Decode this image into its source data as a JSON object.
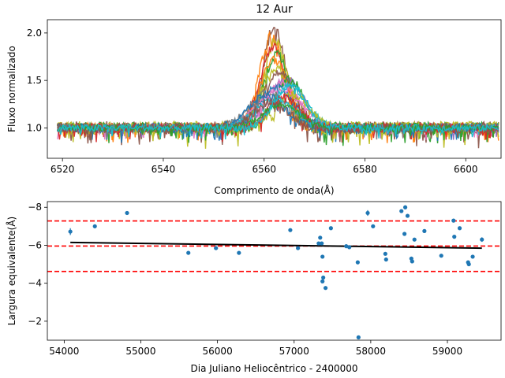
{
  "chart_data": [
    {
      "type": "line",
      "title": "12 Aur",
      "xlabel": "Comprimento de onda(Å)",
      "ylabel": "Fluxo normalizado",
      "xlim": [
        6517,
        6607
      ],
      "ylim": [
        0.68,
        2.14
      ],
      "xticks": [
        6520,
        6540,
        6560,
        6580,
        6600
      ],
      "yticks": [
        1.0,
        1.5,
        2.0
      ],
      "x_range": [
        6519,
        6606.5
      ],
      "n_series": 22,
      "emission_center": 6562,
      "colors": [
        "#1f77b4",
        "#ff7f0e",
        "#2ca02c",
        "#d62728",
        "#9467bd",
        "#8c564b",
        "#e377c2",
        "#7f7f7f",
        "#bcbd22",
        "#17becf"
      ],
      "series": [
        {
          "peak": 2.06,
          "sigma": 2.2,
          "center": 6562.0,
          "noise": 0.07,
          "color": "#8c564b"
        },
        {
          "peak": 1.98,
          "sigma": 2.4,
          "center": 6561.5,
          "noise": 0.05,
          "color": "#ff7f0e"
        },
        {
          "peak": 1.92,
          "sigma": 2.3,
          "center": 6562.2,
          "noise": 0.06,
          "color": "#bcbd22"
        },
        {
          "peak": 1.85,
          "sigma": 2.6,
          "center": 6561.8,
          "noise": 0.05,
          "color": "#d62728"
        },
        {
          "peak": 1.78,
          "sigma": 2.5,
          "center": 6562.5,
          "noise": 0.06,
          "color": "#2ca02c"
        },
        {
          "peak": 1.72,
          "sigma": 2.8,
          "center": 6562.0,
          "noise": 0.05,
          "color": "#ff7f0e"
        },
        {
          "peak": 1.65,
          "sigma": 3.0,
          "center": 6562.8,
          "noise": 0.07,
          "color": "#bcbd22"
        },
        {
          "peak": 1.58,
          "sigma": 3.2,
          "center": 6563.0,
          "noise": 0.05,
          "color": "#8c564b"
        },
        {
          "peak": 1.52,
          "sigma": 3.4,
          "center": 6564.5,
          "noise": 0.04,
          "color": "#9467bd"
        },
        {
          "peak": 1.5,
          "sigma": 3.0,
          "center": 6565.0,
          "noise": 0.05,
          "color": "#2ca02c"
        },
        {
          "peak": 1.47,
          "sigma": 3.6,
          "center": 6563.5,
          "noise": 0.04,
          "color": "#e377c2"
        },
        {
          "peak": 1.45,
          "sigma": 3.2,
          "center": 6565.2,
          "noise": 0.04,
          "color": "#17becf"
        },
        {
          "peak": 1.42,
          "sigma": 3.5,
          "center": 6562.5,
          "noise": 0.05,
          "color": "#1f77b4"
        },
        {
          "peak": 1.4,
          "sigma": 4.5,
          "center": 6563.0,
          "noise": 0.02,
          "color": "#e377c2"
        },
        {
          "peak": 1.38,
          "sigma": 3.8,
          "center": 6561.0,
          "noise": 0.04,
          "color": "#7f7f7f"
        },
        {
          "peak": 1.36,
          "sigma": 3.3,
          "center": 6565.5,
          "noise": 0.04,
          "color": "#bcbd22"
        },
        {
          "peak": 1.34,
          "sigma": 3.6,
          "center": 6560.5,
          "noise": 0.04,
          "color": "#1f77b4"
        },
        {
          "peak": 1.32,
          "sigma": 3.0,
          "center": 6564.0,
          "noise": 0.05,
          "color": "#d62728"
        },
        {
          "peak": 1.3,
          "sigma": 3.9,
          "center": 6562.0,
          "noise": 0.03,
          "color": "#17becf"
        },
        {
          "peak": 1.28,
          "sigma": 3.4,
          "center": 6561.5,
          "noise": 0.05,
          "color": "#8c564b"
        },
        {
          "peak": 1.25,
          "sigma": 3.7,
          "center": 6563.5,
          "noise": 0.03,
          "color": "#2ca02c"
        },
        {
          "peak": 1.45,
          "sigma": 3.0,
          "center": 6565.0,
          "noise": 0.035,
          "color": "#17becf"
        }
      ]
    },
    {
      "type": "scatter",
      "xlabel": "Dia Juliano Heliocêntrico - 2400000",
      "ylabel": "Largura equivalente(Å)",
      "xlim": [
        53780,
        59700
      ],
      "ylim": [
        -8.3,
        -1.0
      ],
      "y_inverted": true,
      "xticks": [
        54000,
        55000,
        56000,
        57000,
        58000,
        59000
      ],
      "yticks": [
        -8,
        -6,
        -4,
        -2
      ],
      "points": [
        {
          "x": 54080,
          "y": -6.72,
          "err": 0.18
        },
        {
          "x": 54400,
          "y": -7.0,
          "err": 0.1
        },
        {
          "x": 54820,
          "y": -7.7,
          "err": 0.05
        },
        {
          "x": 55620,
          "y": -5.6,
          "err": 0.05
        },
        {
          "x": 55980,
          "y": -5.85,
          "err": 0.05
        },
        {
          "x": 56280,
          "y": -5.6,
          "err": 0.05
        },
        {
          "x": 56950,
          "y": -6.8,
          "err": 0.05
        },
        {
          "x": 57050,
          "y": -5.85,
          "err": 0.05
        },
        {
          "x": 57320,
          "y": -6.1,
          "err": 0.05
        },
        {
          "x": 57340,
          "y": -6.4,
          "err": 0.08
        },
        {
          "x": 57360,
          "y": -6.1,
          "err": 0.05
        },
        {
          "x": 57370,
          "y": -5.4,
          "err": 0.05
        },
        {
          "x": 57380,
          "y": -4.3,
          "err": 0.05
        },
        {
          "x": 57370,
          "y": -4.1,
          "err": 0.05
        },
        {
          "x": 57410,
          "y": -3.75,
          "err": 0.05
        },
        {
          "x": 57480,
          "y": -6.9,
          "err": 0.05
        },
        {
          "x": 57680,
          "y": -5.95,
          "err": 0.05
        },
        {
          "x": 57720,
          "y": -5.9,
          "err": 0.05
        },
        {
          "x": 57830,
          "y": -5.1,
          "err": 0.05
        },
        {
          "x": 57840,
          "y": -1.15,
          "err": 0.05
        },
        {
          "x": 57960,
          "y": -7.7,
          "err": 0.15
        },
        {
          "x": 58030,
          "y": -7.0,
          "err": 0.05
        },
        {
          "x": 58190,
          "y": -5.55,
          "err": 0.05
        },
        {
          "x": 58200,
          "y": -5.25,
          "err": 0.05
        },
        {
          "x": 58400,
          "y": -7.8,
          "err": 0.05
        },
        {
          "x": 58440,
          "y": -6.6,
          "err": 0.05
        },
        {
          "x": 58450,
          "y": -8.0,
          "err": 0.1
        },
        {
          "x": 58480,
          "y": -7.55,
          "err": 0.05
        },
        {
          "x": 58530,
          "y": -5.3,
          "err": 0.05
        },
        {
          "x": 58540,
          "y": -5.15,
          "err": 0.05
        },
        {
          "x": 58570,
          "y": -6.3,
          "err": 0.05
        },
        {
          "x": 58700,
          "y": -6.75,
          "err": 0.05
        },
        {
          "x": 58920,
          "y": -5.45,
          "err": 0.05
        },
        {
          "x": 59080,
          "y": -7.3,
          "err": 0.08
        },
        {
          "x": 59090,
          "y": -6.45,
          "err": 0.05
        },
        {
          "x": 59160,
          "y": -6.9,
          "err": 0.05
        },
        {
          "x": 59270,
          "y": -5.1,
          "err": 0.05
        },
        {
          "x": 59280,
          "y": -5.0,
          "err": 0.05
        },
        {
          "x": 59330,
          "y": -5.4,
          "err": 0.05
        },
        {
          "x": 59450,
          "y": -6.3,
          "err": 0.12
        }
      ],
      "trend": {
        "x": [
          54080,
          59450
        ],
        "y": [
          -6.15,
          -5.85
        ],
        "color": "#000000"
      },
      "hlines": [
        {
          "y": -7.28,
          "color": "#ff0000",
          "style": "dashed"
        },
        {
          "y": -5.96,
          "color": "#ff0000",
          "style": "dashed"
        },
        {
          "y": -4.62,
          "color": "#ff0000",
          "style": "dashed"
        }
      ],
      "marker_color": "#1f77b4"
    }
  ]
}
